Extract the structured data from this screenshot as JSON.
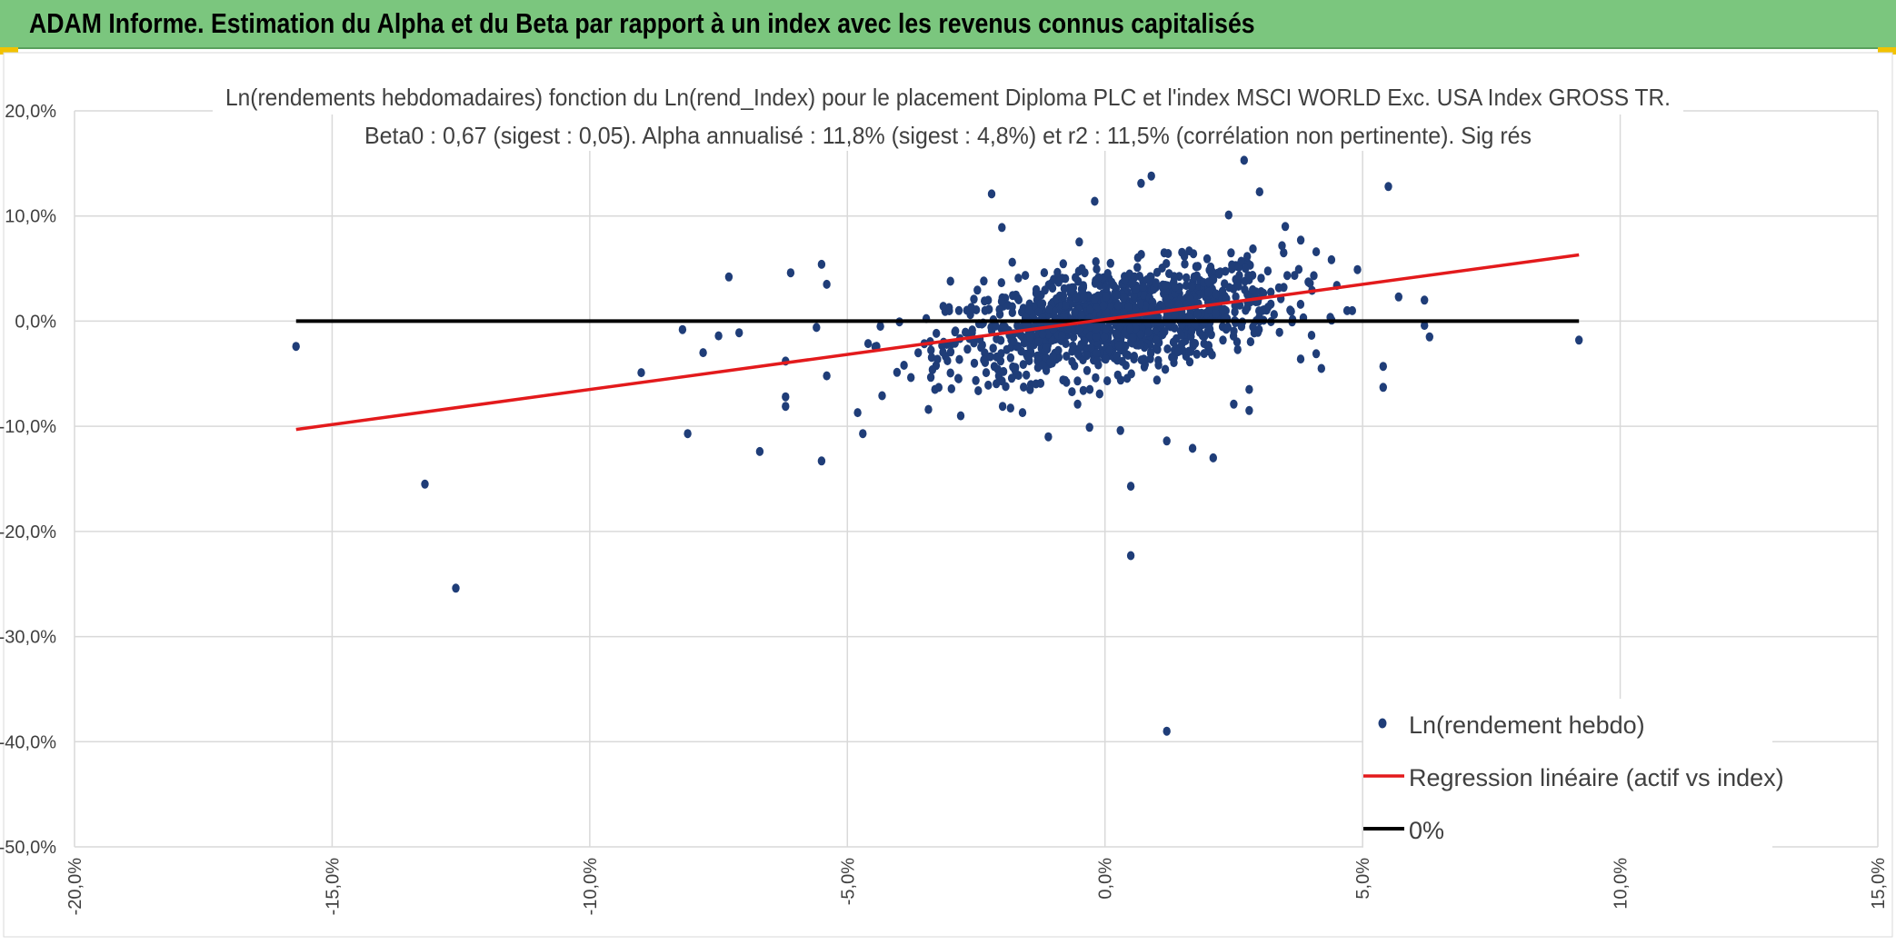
{
  "header": {
    "title": "ADAM Informe. Estimation du Alpha et du Beta par rapport à un index avec les revenus connus capitalisés"
  },
  "colors": {
    "header_bg": "#7bc67e",
    "points": "#1f3d78",
    "regression": "#e31a1c",
    "zero_line": "#000000"
  },
  "chart_data": {
    "type": "scatter",
    "title": "Ln(rendements hebdomadaires) fonction du Ln(rend_Index) pour le placement Diploma PLC et l'index MSCI WORLD Exc. USA Index GROSS TR.",
    "subtitle": "Beta0 : 0,67 (sigest : 0,05). Alpha annualisé : 11,8% (sigest : 4,8%) et r2 : 11,5% (corrélation non pertinente). Sig rés",
    "xlim": [
      -0.2,
      0.15
    ],
    "ylim": [
      -0.5,
      0.2
    ],
    "x_ticks": [
      "-20,0%",
      "-15,0%",
      "-10,0%",
      "-5,0%",
      "0,0%",
      "5,0%",
      "10,0%",
      "15,0%"
    ],
    "y_ticks": [
      "20,0%",
      "10,0%",
      "0,0%",
      "-10,0%",
      "-20,0%",
      "-30,0%",
      "-40,0%",
      "-50,0%"
    ],
    "grid": true,
    "legend_position": "bottom-right",
    "series": [
      {
        "name": "Ln(rendement hebdo)",
        "kind": "scatter",
        "color": "#1f3d78",
        "points": [
          [
            -0.157,
            -0.024
          ],
          [
            -0.132,
            -0.155
          ],
          [
            -0.126,
            -0.254
          ],
          [
            -0.081,
            -0.107
          ],
          [
            -0.067,
            -0.124
          ],
          [
            -0.055,
            -0.133
          ],
          [
            -0.073,
            0.042
          ],
          [
            -0.061,
            0.046
          ],
          [
            -0.055,
            0.054
          ],
          [
            -0.054,
            0.035
          ],
          [
            -0.09,
            -0.049
          ],
          [
            -0.082,
            -0.008
          ],
          [
            -0.078,
            -0.03
          ],
          [
            -0.075,
            -0.014
          ],
          [
            -0.071,
            -0.011
          ],
          [
            -0.062,
            -0.038
          ],
          [
            -0.062,
            -0.072
          ],
          [
            -0.062,
            -0.081
          ],
          [
            -0.056,
            -0.006
          ],
          [
            -0.054,
            -0.052
          ],
          [
            -0.048,
            -0.087
          ],
          [
            -0.047,
            -0.107
          ],
          [
            -0.039,
            -0.042
          ],
          [
            -0.033,
            -0.065
          ],
          [
            -0.03,
            0.038
          ],
          [
            -0.022,
            0.121
          ],
          [
            -0.02,
            0.089
          ],
          [
            -0.018,
            0.056
          ],
          [
            0.012,
            -0.39
          ],
          [
            0.005,
            -0.223
          ],
          [
            0.005,
            -0.157
          ],
          [
            0.012,
            -0.114
          ],
          [
            0.017,
            -0.121
          ],
          [
            0.021,
            -0.13
          ],
          [
            -0.003,
            -0.101
          ],
          [
            0.003,
            -0.104
          ],
          [
            -0.011,
            -0.11
          ],
          [
            0.027,
            0.153
          ],
          [
            0.03,
            0.123
          ],
          [
            0.024,
            0.101
          ],
          [
            0.009,
            0.138
          ],
          [
            0.007,
            0.131
          ],
          [
            -0.002,
            0.114
          ],
          [
            0.035,
            0.09
          ],
          [
            0.041,
            0.066
          ],
          [
            0.038,
            0.077
          ],
          [
            0.049,
            0.049
          ],
          [
            0.055,
            0.128
          ],
          [
            0.057,
            0.023
          ],
          [
            0.062,
            0.02
          ],
          [
            0.062,
            -0.004
          ],
          [
            0.063,
            -0.015
          ],
          [
            0.054,
            -0.043
          ],
          [
            0.054,
            -0.063
          ],
          [
            0.092,
            -0.018
          ],
          [
            0.028,
            -0.065
          ],
          [
            0.028,
            -0.085
          ],
          [
            0.025,
            -0.079
          ],
          [
            0.042,
            -0.045
          ],
          [
            0.041,
            -0.031
          ],
          [
            0.045,
            0.034
          ],
          [
            0.047,
            0.01
          ],
          [
            0.048,
            0.01
          ],
          [
            0.044,
            0.001
          ],
          [
            -0.028,
            -0.09
          ],
          [
            -0.016,
            -0.087
          ],
          [
            0.03,
            0.0
          ]
        ],
        "cloud": {
          "count": 1200,
          "center_x_percent": 0.2,
          "spread_x_percent": 1.6,
          "beta": 0.67,
          "residual_spread_percent": 2.4
        }
      },
      {
        "name": "Regression linéaire (actif vs index)",
        "kind": "line",
        "color": "#e31a1c",
        "x": [
          -0.157,
          0.092
        ],
        "y": [
          -0.103,
          0.063
        ]
      },
      {
        "name": "0%",
        "kind": "line",
        "color": "#000000",
        "x": [
          -0.157,
          0.092
        ],
        "y": [
          0.0,
          0.0
        ]
      }
    ]
  }
}
